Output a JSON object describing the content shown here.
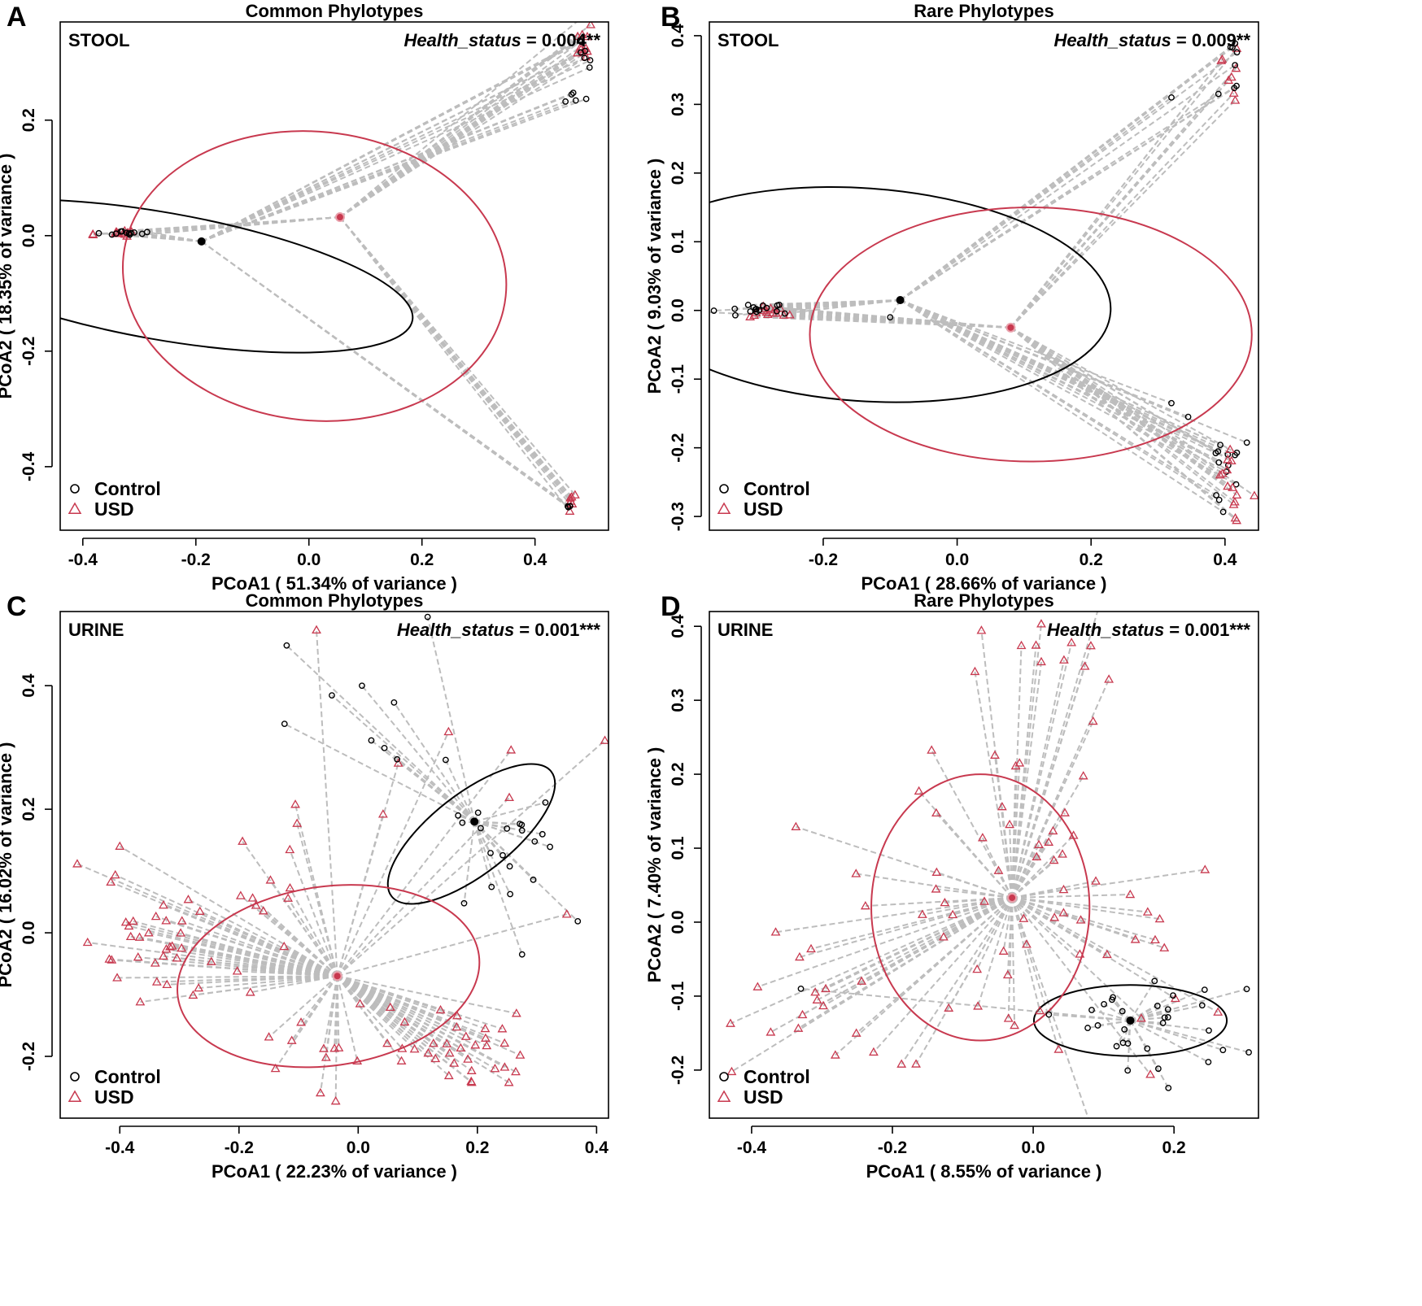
{
  "colors": {
    "control": "#000000",
    "usd": "#c8394f",
    "spider": "#bdbdbd"
  },
  "chart_data": [
    {
      "panel": "A",
      "type": "scatter",
      "title": "Common Phylotypes",
      "sample": "STOOL",
      "stat_term": "Health_status",
      "stat_value": " = 0.004**",
      "xlabel": "PCoA1 ( 51.34% of variance )",
      "ylabel": "PCoA2 ( 18.35% of variance )",
      "xlim": [
        -0.44,
        0.53
      ],
      "ylim": [
        -0.51,
        0.37
      ],
      "xticks": [
        -0.4,
        -0.2,
        0.0,
        0.2,
        0.4
      ],
      "yticks": [
        -0.4,
        -0.2,
        0.0,
        0.2
      ],
      "xtick_labels": [
        "-0.4",
        "-0.2",
        "0.0",
        "0.2",
        "0.4"
      ],
      "ytick_labels": [
        "-0.4",
        "-0.2",
        "0.0",
        "0.2"
      ],
      "legend": [
        "Control",
        "USD"
      ],
      "legend_position": "bottom-left",
      "centroids": {
        "control": [
          -0.19,
          -0.01
        ],
        "usd": [
          0.055,
          0.032
        ]
      },
      "ellipses": {
        "control": {
          "cx": -0.26,
          "cy": -0.07,
          "rx": 0.45,
          "ry": 0.11,
          "angle": 10
        },
        "usd": {
          "cx": 0.01,
          "cy": -0.07,
          "rx": 0.34,
          "ry": 0.25,
          "angle": 6
        }
      },
      "clusters": [
        {
          "group": "usd",
          "cx": -0.34,
          "cy": 0.004,
          "sx": 0.018,
          "sy": 0.002,
          "n": 14,
          "seed": 11
        },
        {
          "group": "control",
          "cx": -0.33,
          "cy": 0.004,
          "sx": 0.02,
          "sy": 0.002,
          "n": 12,
          "seed": 12
        },
        {
          "group": "usd",
          "cx": 0.49,
          "cy": 0.33,
          "sx": 0.008,
          "sy": 0.02,
          "n": 12,
          "seed": 13
        },
        {
          "group": "control",
          "cx": 0.49,
          "cy": 0.32,
          "sx": 0.006,
          "sy": 0.015,
          "n": 7,
          "seed": 14
        },
        {
          "group": "control",
          "cx": 0.46,
          "cy": 0.235,
          "sx": 0.01,
          "sy": 0.008,
          "n": 5,
          "seed": 15
        },
        {
          "group": "usd",
          "cx": 0.465,
          "cy": -0.46,
          "sx": 0.004,
          "sy": 0.008,
          "n": 8,
          "seed": 16
        },
        {
          "group": "control",
          "cx": 0.46,
          "cy": -0.47,
          "sx": 0.003,
          "sy": 0.004,
          "n": 3,
          "seed": 17
        }
      ]
    },
    {
      "panel": "B",
      "type": "scatter",
      "title": "Rare Phylotypes",
      "sample": "STOOL",
      "stat_term": "Health_status",
      "stat_value": " = 0.009**",
      "xlabel": "PCoA1 ( 28.66% of variance )",
      "ylabel": "PCoA2 ( 9.03% of variance )",
      "xlim": [
        -0.37,
        0.45
      ],
      "ylim": [
        -0.32,
        0.42
      ],
      "xticks": [
        -0.2,
        0.0,
        0.2,
        0.4
      ],
      "yticks": [
        -0.3,
        -0.2,
        -0.1,
        0.0,
        0.1,
        0.2,
        0.3,
        0.4
      ],
      "xtick_labels": [
        "-0.2",
        "0.0",
        "0.2",
        "0.4"
      ],
      "ytick_labels": [
        "-0.3",
        "-0.2",
        "-0.1",
        "0.0",
        "0.1",
        "0.2",
        "0.3",
        "0.4"
      ],
      "legend": [
        "Control",
        "USD"
      ],
      "legend_position": "bottom-left",
      "centroids": {
        "control": [
          -0.085,
          0.015
        ],
        "usd": [
          0.08,
          -0.025
        ]
      },
      "ellipses": {
        "control": {
          "cx": -0.14,
          "cy": 0.023,
          "rx": 0.37,
          "ry": 0.155,
          "angle": 4
        },
        "usd": {
          "cx": 0.11,
          "cy": -0.035,
          "rx": 0.33,
          "ry": 0.185,
          "angle": 0
        }
      },
      "clusters": [
        {
          "group": "usd",
          "cx": -0.29,
          "cy": -0.002,
          "sx": 0.03,
          "sy": 0.004,
          "n": 16,
          "seed": 21
        },
        {
          "group": "control",
          "cx": -0.3,
          "cy": 0.0,
          "sx": 0.03,
          "sy": 0.004,
          "n": 16,
          "seed": 22
        },
        {
          "group": "usd",
          "cx": 0.41,
          "cy": 0.34,
          "sx": 0.012,
          "sy": 0.035,
          "n": 8,
          "seed": 23
        },
        {
          "group": "control",
          "cx": 0.41,
          "cy": 0.35,
          "sx": 0.01,
          "sy": 0.03,
          "n": 8,
          "seed": 24
        },
        {
          "group": "control",
          "cx": 0.395,
          "cy": -0.24,
          "sx": 0.014,
          "sy": 0.03,
          "n": 14,
          "seed": 25
        },
        {
          "group": "usd",
          "cx": 0.41,
          "cy": -0.25,
          "sx": 0.012,
          "sy": 0.03,
          "n": 14,
          "seed": 26
        }
      ],
      "singles": [
        {
          "group": "control",
          "x": 0.32,
          "y": 0.31
        },
        {
          "group": "control",
          "x": 0.32,
          "y": -0.135
        },
        {
          "group": "control",
          "x": 0.345,
          "y": -0.155
        },
        {
          "group": "control",
          "x": -0.1,
          "y": -0.01
        }
      ]
    },
    {
      "panel": "C",
      "type": "scatter",
      "title": "Common Phylotypes",
      "sample": "URINE",
      "stat_term": "Health_status",
      "stat_value": " = 0.001***",
      "xlabel": "PCoA1 ( 22.23% of variance )",
      "ylabel": "PCoA2 ( 16.02% of variance )",
      "xlim": [
        -0.5,
        0.42
      ],
      "ylim": [
        -0.3,
        0.52
      ],
      "xticks": [
        -0.4,
        -0.2,
        0.0,
        0.2,
        0.4
      ],
      "yticks": [
        -0.2,
        0.0,
        0.2,
        0.4
      ],
      "xtick_labels": [
        "-0.4",
        "-0.2",
        "0.0",
        "0.2",
        "0.4"
      ],
      "ytick_labels": [
        "-0.2",
        "0.0",
        "0.2",
        "0.4"
      ],
      "legend": [
        "Control",
        "USD"
      ],
      "legend_position": "bottom-left",
      "centroids": {
        "control": [
          0.195,
          0.18
        ],
        "usd": [
          -0.035,
          -0.07
        ]
      },
      "ellipses": {
        "control": {
          "cx": 0.19,
          "cy": 0.16,
          "rx": 0.17,
          "ry": 0.065,
          "angle": -38
        },
        "usd": {
          "cx": -0.05,
          "cy": -0.07,
          "rx": 0.255,
          "ry": 0.145,
          "angle": -8
        }
      },
      "clusters": [
        {
          "group": "usd",
          "cx": -0.35,
          "cy": -0.02,
          "sx": 0.05,
          "sy": 0.06,
          "n": 34,
          "seed": 31
        },
        {
          "group": "usd",
          "cx": 0.17,
          "cy": -0.2,
          "sx": 0.055,
          "sy": 0.035,
          "n": 32,
          "seed": 32
        },
        {
          "group": "usd",
          "cx": -0.06,
          "cy": -0.18,
          "sx": 0.06,
          "sy": 0.03,
          "n": 14,
          "seed": 33
        },
        {
          "group": "usd",
          "cx": -0.18,
          "cy": 0.06,
          "sx": 0.05,
          "sy": 0.07,
          "n": 14,
          "seed": 34
        },
        {
          "group": "usd",
          "cx": 0.12,
          "cy": 0.26,
          "sx": 0.07,
          "sy": 0.04,
          "n": 6,
          "seed": 35
        },
        {
          "group": "control",
          "cx": 0.25,
          "cy": 0.15,
          "sx": 0.05,
          "sy": 0.06,
          "n": 20,
          "seed": 36
        },
        {
          "group": "control",
          "cx": 0.02,
          "cy": 0.34,
          "sx": 0.09,
          "sy": 0.06,
          "n": 9,
          "seed": 37
        }
      ],
      "singles": [
        {
          "group": "usd",
          "x": -0.07,
          "y": 0.49
        },
        {
          "group": "control",
          "x": -0.12,
          "y": 0.465
        },
        {
          "group": "usd",
          "x": 0.35,
          "y": 0.03
        },
        {
          "group": "control",
          "x": 0.275,
          "y": -0.035
        },
        {
          "group": "usd",
          "x": -0.4,
          "y": 0.14
        }
      ]
    },
    {
      "panel": "D",
      "type": "scatter",
      "title": "Rare Phylotypes",
      "sample": "URINE",
      "stat_term": "Health_status",
      "stat_value": " = 0.001***",
      "xlabel": "PCoA1 ( 8.55% of variance )",
      "ylabel": "PCoA2 ( 7.40% of variance )",
      "xlim": [
        -0.46,
        0.32
      ],
      "ylim": [
        -0.265,
        0.42
      ],
      "xticks": [
        -0.4,
        -0.2,
        0.0,
        0.2
      ],
      "yticks": [
        -0.2,
        -0.1,
        0.0,
        0.1,
        0.2,
        0.3,
        0.4
      ],
      "xtick_labels": [
        "-0.4",
        "-0.2",
        "0.0",
        "0.2"
      ],
      "ytick_labels": [
        "-0.2",
        "-0.1",
        "0.0",
        "0.1",
        "0.2",
        "0.3",
        "0.4"
      ],
      "legend": [
        "Control",
        "USD"
      ],
      "legend_position": "bottom-left",
      "centroids": {
        "control": [
          0.138,
          -0.133
        ],
        "usd": [
          -0.03,
          0.033
        ]
      },
      "ellipses": {
        "control": {
          "cx": 0.138,
          "cy": -0.133,
          "rx": 0.137,
          "ry": 0.048,
          "angle": 0
        },
        "usd": {
          "cx": -0.075,
          "cy": 0.02,
          "rx": 0.155,
          "ry": 0.18,
          "angle": 0
        }
      },
      "clusters": [
        {
          "group": "usd",
          "cx": -0.03,
          "cy": 0.03,
          "sx": 0.15,
          "sy": 0.15,
          "n": 70,
          "seed": 41
        },
        {
          "group": "usd",
          "cx": 0.03,
          "cy": 0.36,
          "sx": 0.04,
          "sy": 0.02,
          "n": 8,
          "seed": 42
        },
        {
          "group": "control",
          "cx": 0.17,
          "cy": -0.14,
          "sx": 0.07,
          "sy": 0.04,
          "n": 30,
          "seed": 43
        },
        {
          "group": "usd",
          "cx": -0.34,
          "cy": -0.12,
          "sx": 0.05,
          "sy": 0.05,
          "n": 12,
          "seed": 44
        }
      ],
      "singles": [
        {
          "group": "usd",
          "x": -0.43,
          "y": -0.137
        },
        {
          "group": "control",
          "x": -0.33,
          "y": -0.09
        }
      ]
    }
  ]
}
